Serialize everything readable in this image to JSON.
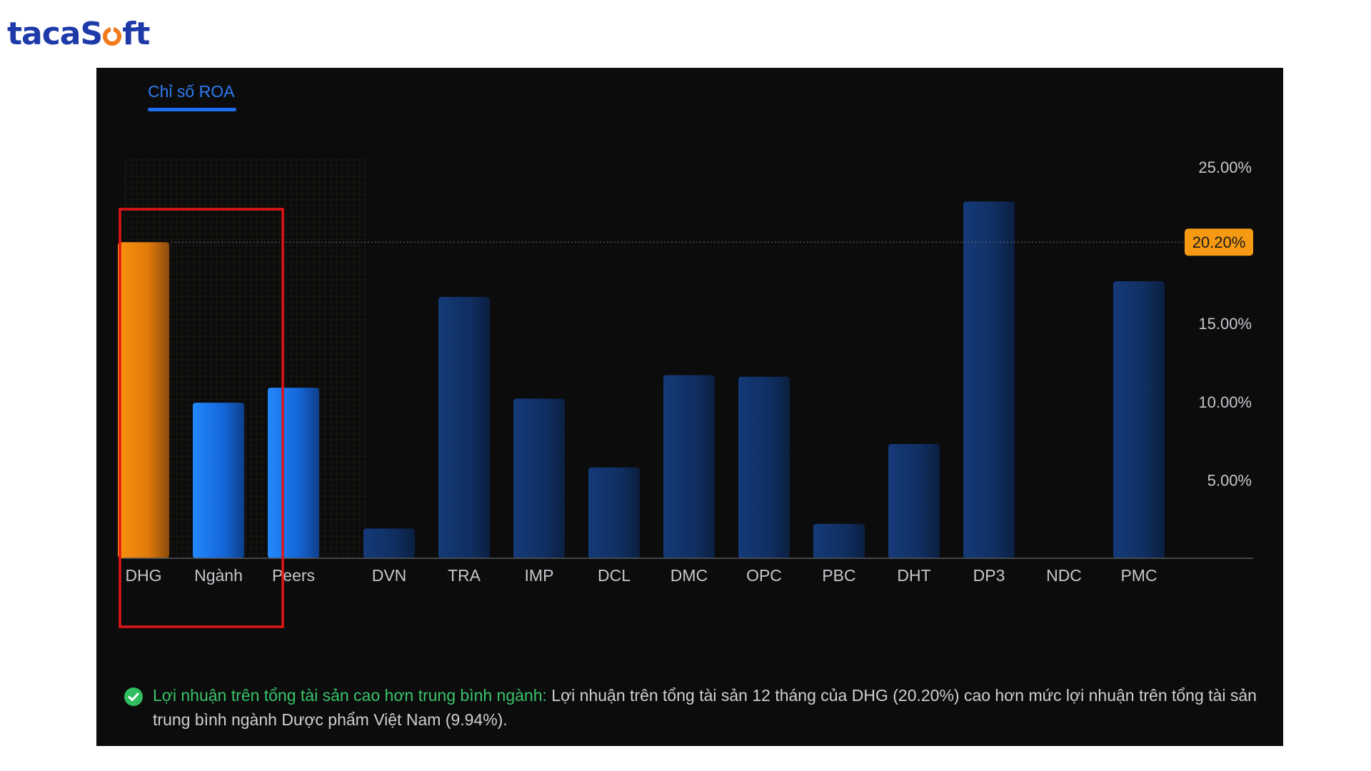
{
  "brand": {
    "logo_text_pre": "tacaS",
    "logo_text_post": "ft"
  },
  "tabs": [
    {
      "label": "Chỉ số ROA",
      "active": true
    }
  ],
  "chart_data": {
    "type": "bar",
    "categories": [
      "DHG",
      "Ngành",
      "Peers",
      "DVN",
      "TRA",
      "IMP",
      "DCL",
      "DMC",
      "OPC",
      "PBC",
      "DHT",
      "DP3",
      "NDC",
      "PMC"
    ],
    "values": [
      20.2,
      9.94,
      10.9,
      1.9,
      16.7,
      10.2,
      5.8,
      11.7,
      11.6,
      2.2,
      7.3,
      22.8,
      0,
      17.7
    ],
    "ylim": [
      0,
      25
    ],
    "yticks": [
      "5.00%",
      "10.00%",
      "15.00%",
      "20.00%",
      "25.00%"
    ],
    "ytick_values": [
      5,
      10,
      15,
      20,
      25
    ],
    "highlight_value": 20.2,
    "highlight_label": "20.20%",
    "colors": {
      "DHG": "#f58b0f",
      "Ngành": "#1c7df2",
      "Peers": "#1c7df2",
      "others": "#123366"
    },
    "grid": false
  },
  "note": {
    "lead": "Lợi nhuận trên tổng tài sản cao hơn trung bình ngành:",
    "body": " Lợi nhuận trên tổng tài sản 12 tháng của DHG (20.20%) cao hơn mức lợi nhuận trên tổng tài sản trung bình ngành Dược phẩm Việt Nam (9.94%)."
  }
}
